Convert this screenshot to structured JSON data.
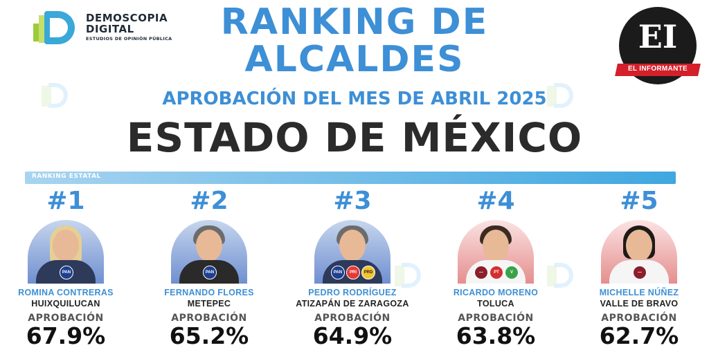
{
  "brand": {
    "name_line1": "DEMOSCOPIA",
    "name_line2": "DIGITAL",
    "tagline": "ESTUDIOS DE OPINIÓN PÚBLICA"
  },
  "publisher": {
    "logo_letters": "EI",
    "name": "EL INFORMANTE",
    "colors": {
      "circle": "#1b1b1b",
      "ribbon": "#d3202a"
    }
  },
  "header": {
    "title_line1": "RANKING DE",
    "title_line2": "ALCALDES",
    "subtitle": "APROBACIÓN DEL MES DE ABRIL 2025",
    "state": "ESTADO DE MÉXICO"
  },
  "ranking_bar": {
    "label": "RANKING ESTATAL"
  },
  "approval_label": "APROBACIÓN",
  "mayors": [
    {
      "rank": "#1",
      "name": "ROMINA CONTRERAS",
      "city": "HUIXQUILUCAN",
      "approval": "67.9%",
      "approval_value": 67.9,
      "parties": [
        "PAN"
      ],
      "photo_bg": "blue"
    },
    {
      "rank": "#2",
      "name": "FERNANDO FLORES",
      "city": "METEPEC",
      "approval": "65.2%",
      "approval_value": 65.2,
      "parties": [
        "PAN"
      ],
      "photo_bg": "blue"
    },
    {
      "rank": "#3",
      "name": "PEDRO RODRÍGUEZ",
      "city": "ATIZAPÁN DE ZARAGOZA",
      "approval": "64.9%",
      "approval_value": 64.9,
      "parties": [
        "PAN",
        "PRI",
        "PRD"
      ],
      "photo_bg": "blue"
    },
    {
      "rank": "#4",
      "name": "RICARDO MORENO",
      "city": "TOLUCA",
      "approval": "63.8%",
      "approval_value": 63.8,
      "parties": [
        "MORENA",
        "PT",
        "VERDE"
      ],
      "photo_bg": "red"
    },
    {
      "rank": "#5",
      "name": "MICHELLE NÚÑEZ",
      "city": "VALLE DE BRAVO",
      "approval": "62.7%",
      "approval_value": 62.7,
      "parties": [
        "MORENA"
      ],
      "photo_bg": "red"
    }
  ],
  "colors": {
    "accent_blue": "#3d8fd6",
    "state_text": "#2b2b2b"
  }
}
